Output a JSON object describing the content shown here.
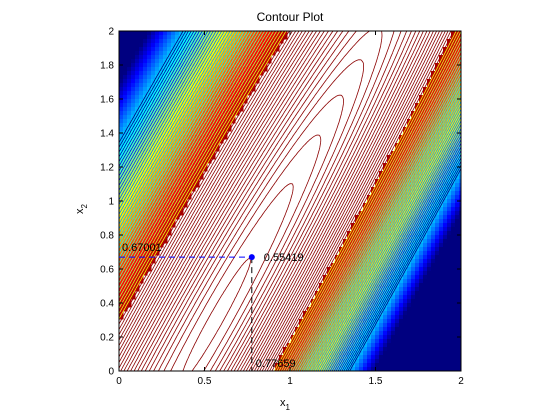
{
  "chart_data": {
    "type": "contour",
    "title": "Contour Plot",
    "xlabel": "x",
    "xlabel_sub": "1",
    "ylabel": "x",
    "ylabel_sub": "2",
    "xlim": [
      0,
      2
    ],
    "ylim": [
      0,
      2
    ],
    "xticks": [
      "0",
      "0.5",
      "1",
      "1.5",
      "2"
    ],
    "yticks": [
      "0",
      "0.2",
      "0.4",
      "0.6",
      "0.8",
      "1",
      "1.2",
      "1.4",
      "1.6",
      "1.8",
      "2"
    ],
    "grid": false,
    "colormap": "jet",
    "low_color": "#8b0000",
    "marker": {
      "x": 0.77659,
      "y": 0.67001,
      "z": 0.55419,
      "color": "#0000ff"
    },
    "annotations": {
      "x_value": "0.77659",
      "y_value": "0.67001",
      "z_value": "0.55419"
    }
  }
}
